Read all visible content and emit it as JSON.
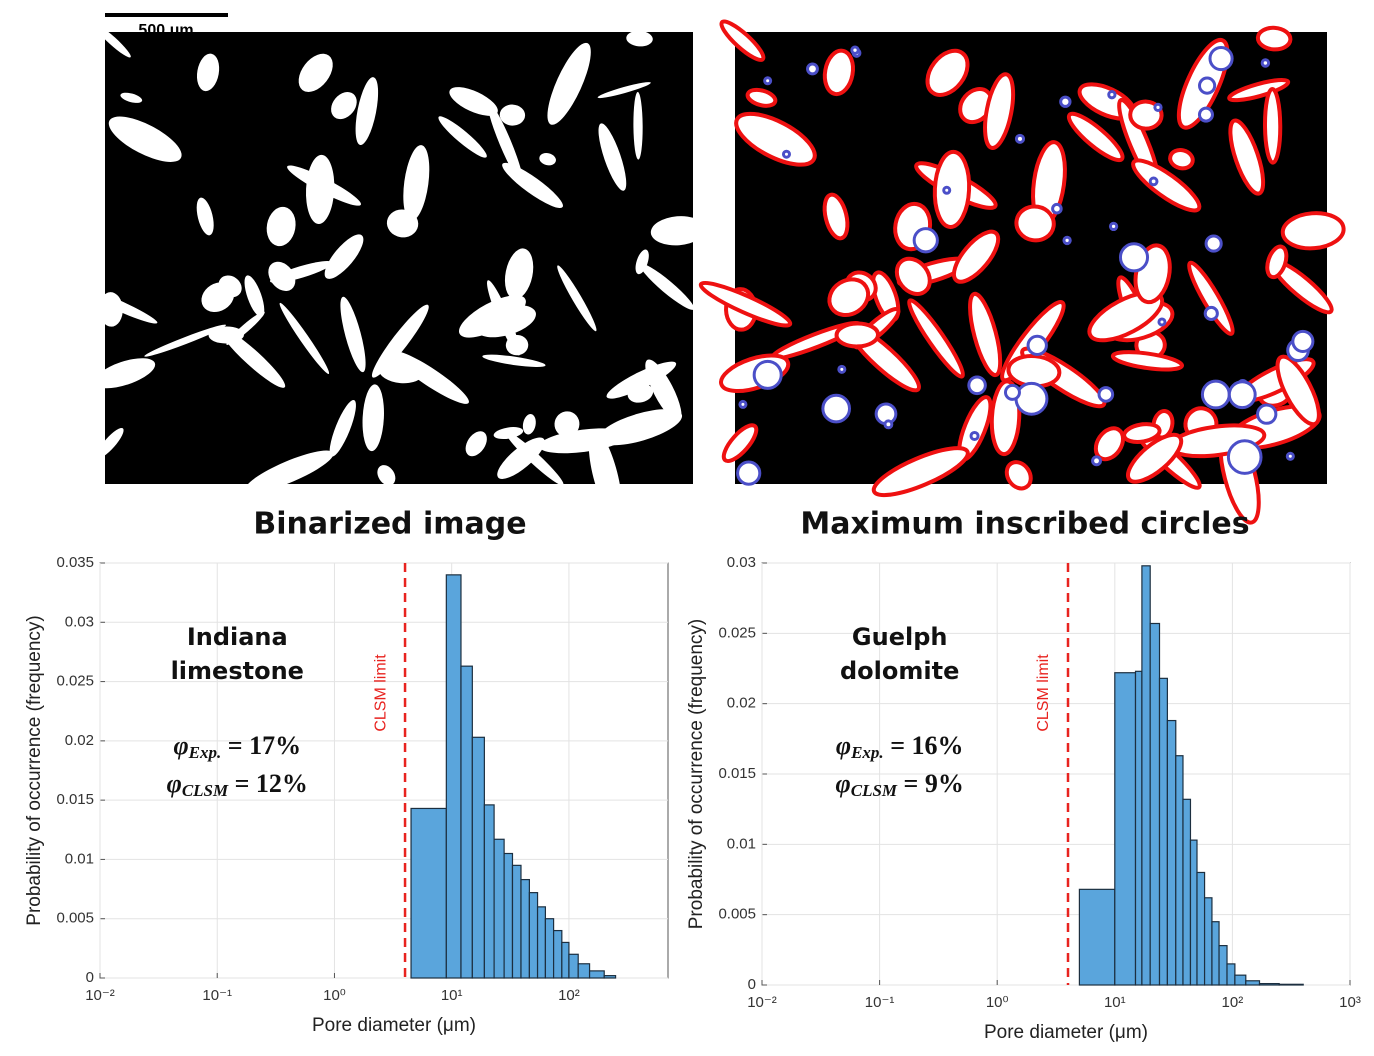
{
  "scale_bar": "500 μm",
  "images": [
    {
      "caption": "Binarized image"
    },
    {
      "caption": "Maximum inscribed circles"
    }
  ],
  "chart_data": [
    {
      "type": "histogram",
      "xlabel": "Pore diameter (μm)",
      "ylabel": "Probability of occurrence (frequency)",
      "annotation": [
        "Indiana",
        "limestone"
      ],
      "porosity": [
        {
          "symbol": "φ",
          "subscript": "Exp.",
          "text": " = 17%"
        },
        {
          "symbol": "φ",
          "subscript": "CLSM",
          "text": " = 12%"
        }
      ],
      "vline": {
        "value": 4,
        "label": "CLSM limit",
        "color": "#e8231f"
      },
      "bins": [
        4.5,
        9,
        12,
        15,
        19,
        23,
        28,
        33,
        39,
        46,
        54,
        63,
        74,
        87,
        100,
        120,
        150,
        200,
        250
      ],
      "values": [
        0.0143,
        0.034,
        0.0263,
        0.0203,
        0.0146,
        0.0117,
        0.0105,
        0.0095,
        0.0083,
        0.0072,
        0.006,
        0.005,
        0.004,
        0.003,
        0.002,
        0.0012,
        0.0006,
        0.0002
      ],
      "color": "#5aa5dc",
      "xscale": "log",
      "xlim": [
        0.01,
        700
      ],
      "xticks": [
        {
          "value": 0.01,
          "label": "10⁻²"
        },
        {
          "value": 0.1,
          "label": "10⁻¹"
        },
        {
          "value": 1,
          "label": "10⁰"
        },
        {
          "value": 10,
          "label": "10¹"
        },
        {
          "value": 100,
          "label": "10²"
        }
      ],
      "ylim": [
        0,
        0.035
      ],
      "yticks": [
        0,
        0.005,
        0.01,
        0.015,
        0.02,
        0.025,
        0.03,
        0.035
      ],
      "grid": true
    },
    {
      "type": "histogram",
      "xlabel": "Pore diameter (μm)",
      "ylabel": "Probability of occurrence (frequency)",
      "annotation": [
        "Guelph",
        "dolomite"
      ],
      "porosity": [
        {
          "symbol": "φ",
          "subscript": "Exp.",
          "text": " = 16%"
        },
        {
          "symbol": "φ",
          "subscript": "CLSM",
          "text": " = 9%"
        }
      ],
      "vline": {
        "value": 4,
        "label": "CLSM limit",
        "color": "#e8231f"
      },
      "bins": [
        5,
        10,
        15,
        17,
        20,
        24,
        28,
        33,
        38,
        44,
        50,
        58,
        67,
        77,
        90,
        105,
        130,
        170,
        250,
        400
      ],
      "values": [
        0.0068,
        0.0222,
        0.0223,
        0.0298,
        0.0257,
        0.0218,
        0.0188,
        0.0163,
        0.0132,
        0.0103,
        0.008,
        0.0062,
        0.0045,
        0.0028,
        0.0015,
        0.0007,
        0.0003,
        0.0001,
        5e-05
      ],
      "color": "#5aa5dc",
      "xscale": "log",
      "xlim": [
        0.01,
        1000
      ],
      "xticks": [
        {
          "value": 0.01,
          "label": "10⁻²"
        },
        {
          "value": 0.1,
          "label": "10⁻¹"
        },
        {
          "value": 1,
          "label": "10⁰"
        },
        {
          "value": 10,
          "label": "10¹"
        },
        {
          "value": 100,
          "label": "10²"
        },
        {
          "value": 1000,
          "label": "10³"
        }
      ],
      "ylim": [
        0,
        0.03
      ],
      "yticks": [
        0,
        0.005,
        0.01,
        0.015,
        0.02,
        0.025,
        0.03
      ],
      "grid": true
    }
  ]
}
